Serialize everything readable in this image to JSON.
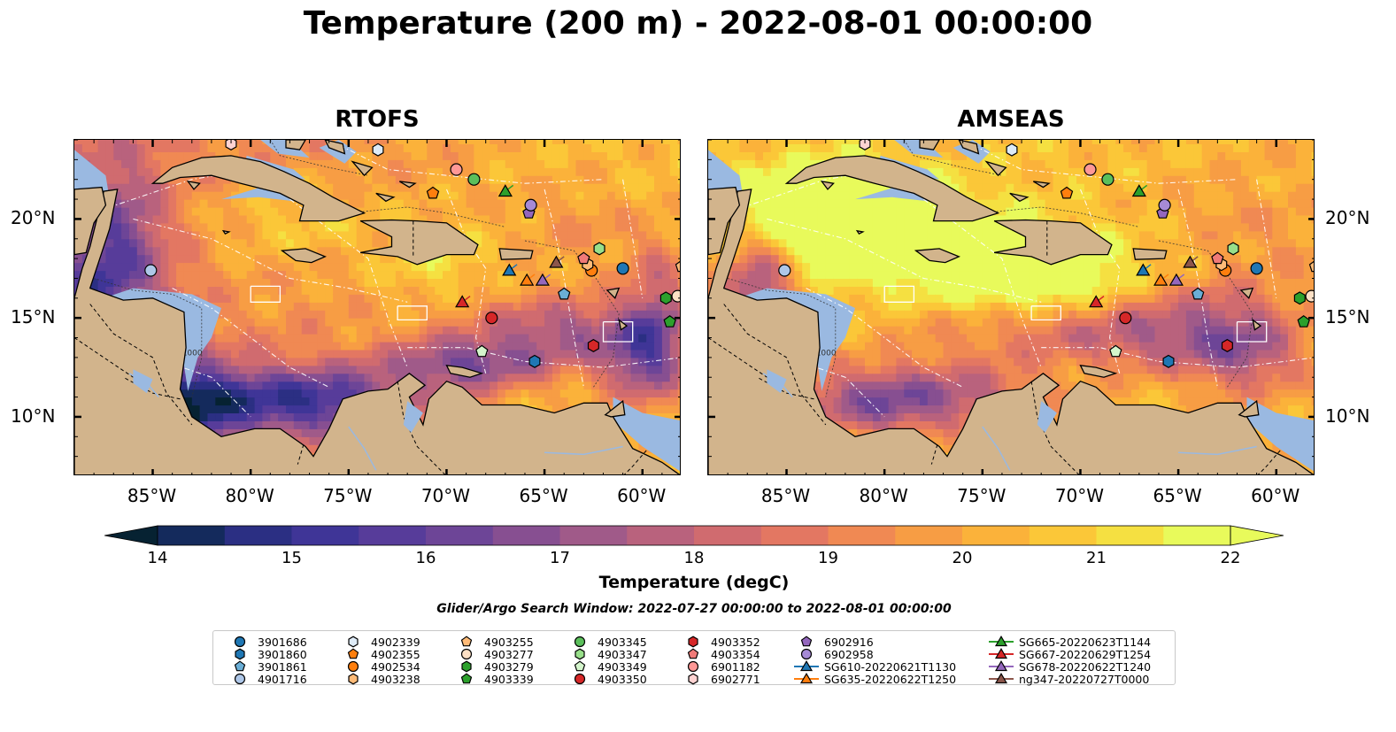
{
  "title": "Temperature (200 m) - 2022-08-01 00:00:00",
  "panels": [
    {
      "title": "RTOFS",
      "model": "rtofs"
    },
    {
      "title": "AMSEAS",
      "model": "amseas"
    }
  ],
  "map": {
    "lon_range": [
      -89,
      -58
    ],
    "lat_range": [
      7,
      24
    ],
    "lon_ticks": [
      "85°W",
      "80°W",
      "75°W",
      "70°W",
      "65°W",
      "60°W"
    ],
    "lat_ticks": [
      "20°N",
      "15°N",
      "10°N"
    ],
    "contour_label": "1000",
    "land_color": "#d2b48c",
    "shallow_water_color": "#9ab9e1"
  },
  "colorbar": {
    "ticks": [
      "14",
      "15",
      "16",
      "17",
      "18",
      "19",
      "20",
      "21",
      "22"
    ],
    "label": "Temperature (degC)",
    "vmin": 14,
    "vmax": 22,
    "extend": "both",
    "colormap": [
      "#062232",
      "#142a5c",
      "#2b2f83",
      "#3f3597",
      "#573c9a",
      "#6d4597",
      "#874f91",
      "#a05a89",
      "#b9627d",
      "#d06b6f",
      "#e37762",
      "#f08953",
      "#f79d44",
      "#fbb23a",
      "#fbc738",
      "#f5e041",
      "#e8fa5b"
    ]
  },
  "subtitle": "Glider/Argo Search Window: 2022-07-27 00:00:00 to 2022-08-01 00:00:00",
  "platforms": [
    {
      "name": "3901686",
      "marker": "circle",
      "color": "#1f77b4",
      "lon": -61.0,
      "lat": 17.5
    },
    {
      "name": "3901860",
      "marker": "hexagon",
      "color": "#1f77b4",
      "lon": -65.5,
      "lat": 12.8
    },
    {
      "name": "3901861",
      "marker": "pentagon",
      "color": "#aec7e8",
      "lon": -64.0,
      "lat": 16.2,
      "marker_color": "#6aaed6"
    },
    {
      "name": "4901716",
      "marker": "circle",
      "color": "#aec7e8",
      "lon": -85.1,
      "lat": 17.4
    },
    {
      "name": "4902339",
      "marker": "hexagon",
      "color": "#deebf7",
      "lon": -73.5,
      "lat": 23.5
    },
    {
      "name": "4902355",
      "marker": "pentagon",
      "color": "#ff7f0e",
      "lon": -70.7,
      "lat": 21.3
    },
    {
      "name": "4902534",
      "marker": "circle",
      "color": "#ff7f0e",
      "lon": -62.6,
      "lat": 17.4
    },
    {
      "name": "4903238",
      "marker": "hexagon",
      "color": "#ffbb78",
      "lon": -62.8,
      "lat": 17.7
    },
    {
      "name": "4903255",
      "marker": "pentagon",
      "color": "#ffbb78",
      "lon": -58.0,
      "lat": 17.6
    },
    {
      "name": "4903277",
      "marker": "circle",
      "color": "#fde0c5",
      "lon": -58.2,
      "lat": 16.1
    },
    {
      "name": "4903279",
      "marker": "hexagon",
      "color": "#2ca02c",
      "lon": -58.8,
      "lat": 16.0
    },
    {
      "name": "4903339",
      "marker": "pentagon",
      "color": "#2ca02c",
      "lon": -58.6,
      "lat": 14.8
    },
    {
      "name": "4903345",
      "marker": "circle",
      "color": "#98df8a",
      "lon": -68.6,
      "lat": 22.0,
      "marker_color": "#5bbf5b"
    },
    {
      "name": "4903347",
      "marker": "hexagon",
      "color": "#98df8a",
      "lon": -62.2,
      "lat": 18.5
    },
    {
      "name": "4903349",
      "marker": "pentagon",
      "color": "#d4f5cc",
      "lon": -68.2,
      "lat": 13.3
    },
    {
      "name": "4903350",
      "marker": "circle",
      "color": "#d62728",
      "lon": -67.7,
      "lat": 15.0
    },
    {
      "name": "4903352",
      "marker": "hexagon",
      "color": "#d62728",
      "lon": -62.5,
      "lat": 13.6
    },
    {
      "name": "4903354",
      "marker": "pentagon",
      "color": "#ff9896",
      "lon": -63.0,
      "lat": 18.0,
      "marker_color": "#f07a78"
    },
    {
      "name": "6901182",
      "marker": "circle",
      "color": "#ff9896",
      "lon": -69.5,
      "lat": 22.5
    },
    {
      "name": "6902771",
      "marker": "hexagon",
      "color": "#ffd3d2",
      "lon": -81.0,
      "lat": 23.8
    },
    {
      "name": "6902916",
      "marker": "pentagon",
      "color": "#9467bd",
      "lon": -65.8,
      "lat": 20.3
    },
    {
      "name": "6902958",
      "marker": "circle",
      "color": "#c5b0d5",
      "lon": -65.7,
      "lat": 20.7,
      "marker_color": "#a68ad6"
    },
    {
      "name": "SG610-20220621T1130",
      "marker": "triangle",
      "color": "#1f77b4",
      "lon": -66.8,
      "lat": 17.4,
      "track": true
    },
    {
      "name": "SG635-20220622T1250",
      "marker": "triangle",
      "color": "#ff7f0e",
      "lon": -65.9,
      "lat": 16.9,
      "track": true
    },
    {
      "name": "SG665-20220623T1144",
      "marker": "triangle",
      "color": "#2ca02c",
      "lon": -67.0,
      "lat": 21.4,
      "track": true
    },
    {
      "name": "SG667-20220629T1254",
      "marker": "triangle",
      "color": "#d62728",
      "lon": -69.2,
      "lat": 15.8,
      "track": true
    },
    {
      "name": "SG678-20220622T1240",
      "marker": "triangle",
      "color": "#9467bd",
      "lon": -65.1,
      "lat": 16.9,
      "track": true
    },
    {
      "name": "ng347-20220727T0000",
      "marker": "triangle",
      "color": "#8c564b",
      "lon": -64.4,
      "lat": 17.8,
      "track": true
    }
  ]
}
